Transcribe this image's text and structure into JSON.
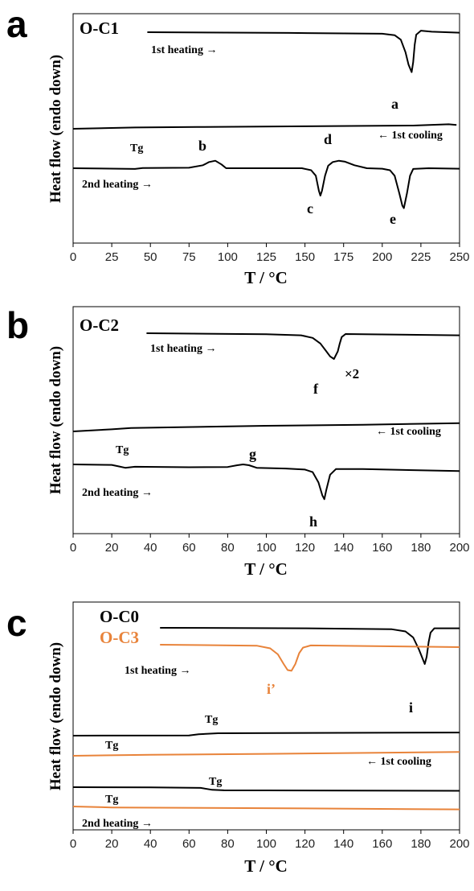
{
  "chart_data": [
    {
      "type": "line",
      "panel": "a",
      "title": "O-C1",
      "xlabel": "T / °C",
      "ylabel": "Heat flow (endo down)",
      "xlim": [
        0,
        250
      ],
      "xticks": [
        0,
        25,
        50,
        75,
        100,
        125,
        150,
        175,
        200,
        225,
        250
      ],
      "annotations": [
        {
          "text": "1st heating →"
        },
        {
          "text": "← 1st cooling"
        },
        {
          "text": "2nd heating →"
        },
        {
          "text": "Tg",
          "x": 40
        }
      ],
      "peaks": [
        {
          "label": "a",
          "x": 219
        },
        {
          "label": "b",
          "x": 92
        },
        {
          "label": "c",
          "x": 160
        },
        {
          "label": "d",
          "x": 172
        },
        {
          "label": "e",
          "x": 214
        }
      ],
      "series": [
        {
          "name": "1st heating",
          "color": "#000000",
          "points": [
            [
              48,
              0
            ],
            [
              140,
              -0.3
            ],
            [
              200,
              -0.6
            ],
            [
              208,
              -1.2
            ],
            [
              212,
              -3
            ],
            [
              215,
              -8
            ],
            [
              217,
              -13
            ],
            [
              219,
              -16
            ],
            [
              220,
              -12
            ],
            [
              221,
              -5
            ],
            [
              222,
              -1
            ],
            [
              225,
              0.6
            ],
            [
              232,
              0.2
            ],
            [
              250,
              -0.2
            ]
          ]
        },
        {
          "name": "1st cooling",
          "color": "#000000",
          "points": [
            [
              0,
              0
            ],
            [
              40,
              0.5
            ],
            [
              80,
              0.7
            ],
            [
              150,
              1
            ],
            [
              220,
              1.3
            ],
            [
              243,
              1.8
            ],
            [
              248,
              1.5
            ]
          ]
        },
        {
          "name": "2nd heating",
          "color": "#000000",
          "points": [
            [
              0,
              0
            ],
            [
              40,
              -0.3
            ],
            [
              45,
              0.1
            ],
            [
              75,
              0.2
            ],
            [
              84,
              1.2
            ],
            [
              88,
              2.5
            ],
            [
              92,
              3
            ],
            [
              96,
              1.5
            ],
            [
              99,
              0
            ],
            [
              104,
              0
            ],
            [
              148,
              0
            ],
            [
              154,
              -0.8
            ],
            [
              157,
              -3
            ],
            [
              159,
              -9
            ],
            [
              160,
              -11
            ],
            [
              161,
              -9
            ],
            [
              163,
              -3
            ],
            [
              165,
              1
            ],
            [
              168,
              2.5
            ],
            [
              172,
              3
            ],
            [
              176,
              2.6
            ],
            [
              182,
              1.2
            ],
            [
              190,
              0
            ],
            [
              200,
              -0.2
            ],
            [
              205,
              -0.8
            ],
            [
              208,
              -3
            ],
            [
              211,
              -10
            ],
            [
              213,
              -15
            ],
            [
              214,
              -16
            ],
            [
              216,
              -10
            ],
            [
              218,
              -3
            ],
            [
              220,
              -0.3
            ],
            [
              230,
              0
            ],
            [
              250,
              -0.2
            ]
          ]
        }
      ]
    },
    {
      "type": "line",
      "panel": "b",
      "title": "O-C2",
      "xlabel": "T / °C",
      "ylabel": "Heat flow (endo down)",
      "xlim": [
        0,
        200
      ],
      "xticks": [
        0,
        20,
        40,
        60,
        80,
        100,
        120,
        140,
        160,
        180,
        200
      ],
      "annotations": [
        {
          "text": "1st heating →"
        },
        {
          "text": "← 1st cooling"
        },
        {
          "text": "2nd heating →"
        },
        {
          "text": "×2",
          "x": 141
        },
        {
          "text": "Tg",
          "x": 27
        }
      ],
      "peaks": [
        {
          "label": "f",
          "x": 135
        },
        {
          "label": "g",
          "x": 88
        },
        {
          "label": "h",
          "x": 130
        }
      ],
      "series": [
        {
          "name": "1st heating",
          "color": "#000000",
          "points": [
            [
              38,
              0
            ],
            [
              100,
              -0.4
            ],
            [
              118,
              -0.8
            ],
            [
              124,
              -1.8
            ],
            [
              128,
              -4
            ],
            [
              131,
              -7
            ],
            [
              133,
              -9
            ],
            [
              135,
              -10
            ],
            [
              137,
              -7
            ],
            [
              138,
              -4
            ],
            [
              139,
              -1.5
            ],
            [
              141,
              -0.3
            ],
            [
              150,
              -0.4
            ],
            [
              200,
              -0.8
            ]
          ]
        },
        {
          "name": "1st cooling",
          "color": "#000000",
          "points": [
            [
              0,
              0
            ],
            [
              20,
              0.8
            ],
            [
              30,
              1.3
            ],
            [
              100,
              2.2
            ],
            [
              150,
              2.6
            ],
            [
              200,
              3.2
            ]
          ]
        },
        {
          "name": "2nd heating",
          "color": "#000000",
          "points": [
            [
              0,
              0
            ],
            [
              20,
              -0.2
            ],
            [
              24,
              -0.8
            ],
            [
              27,
              -1.3
            ],
            [
              32,
              -0.9
            ],
            [
              60,
              -1.1
            ],
            [
              80,
              -1
            ],
            [
              85,
              -0.3
            ],
            [
              88,
              0
            ],
            [
              91,
              -0.3
            ],
            [
              95,
              -1.3
            ],
            [
              110,
              -1.6
            ],
            [
              120,
              -2
            ],
            [
              124,
              -3
            ],
            [
              127,
              -7
            ],
            [
              129,
              -12
            ],
            [
              130,
              -13.5
            ],
            [
              131,
              -10
            ],
            [
              133,
              -4
            ],
            [
              136,
              -1.8
            ],
            [
              150,
              -1.8
            ],
            [
              200,
              -2.6
            ]
          ]
        }
      ]
    },
    {
      "type": "line",
      "panel": "c",
      "xlabel": "T / °C",
      "ylabel": "Heat flow (endo down)",
      "xlim": [
        0,
        200
      ],
      "xticks": [
        0,
        20,
        40,
        60,
        80,
        100,
        120,
        140,
        160,
        180,
        200
      ],
      "legend": [
        {
          "name": "O-C0",
          "color": "#000000"
        },
        {
          "name": "O-C3",
          "color": "#e8833a"
        }
      ],
      "annotations": [
        {
          "text": "1st heating →"
        },
        {
          "text": "← 1st cooling"
        },
        {
          "text": "2nd heating →"
        },
        {
          "text": "Tg",
          "series": "O-C0 cooling",
          "x": 72
        },
        {
          "text": "Tg",
          "series": "O-C3 cooling",
          "x": 20
        },
        {
          "text": "Tg",
          "series": "O-C0 2nd heating",
          "x": 75
        },
        {
          "text": "Tg",
          "series": "O-C3 2nd heating",
          "x": 20
        }
      ],
      "peaks": [
        {
          "label": "i",
          "x": 182
        },
        {
          "label": "i’",
          "x": 112,
          "color": "#e8833a"
        }
      ],
      "series": [
        {
          "name": "O-C0 1st heating",
          "color": "#000000",
          "points": [
            [
              45,
              0
            ],
            [
              120,
              -0.2
            ],
            [
              165,
              -0.6
            ],
            [
              172,
              -1.5
            ],
            [
              176,
              -4
            ],
            [
              179,
              -9
            ],
            [
              181,
              -13
            ],
            [
              182,
              -15
            ],
            [
              183,
              -12
            ],
            [
              184,
              -6
            ],
            [
              185,
              -2
            ],
            [
              187,
              -0.2
            ],
            [
              200,
              -0.2
            ]
          ]
        },
        {
          "name": "O-C3 1st heating",
          "color": "#e8833a",
          "points": [
            [
              45,
              0
            ],
            [
              95,
              -0.4
            ],
            [
              102,
              -1.5
            ],
            [
              106,
              -4
            ],
            [
              109,
              -8
            ],
            [
              111,
              -10.5
            ],
            [
              113,
              -10.8
            ],
            [
              115,
              -8
            ],
            [
              117,
              -3.5
            ],
            [
              119,
              -1.2
            ],
            [
              123,
              -0.3
            ],
            [
              200,
              -1
            ]
          ]
        },
        {
          "name": "O-C0 1st cooling",
          "color": "#000000",
          "points": [
            [
              0,
              0
            ],
            [
              60,
              0.1
            ],
            [
              65,
              0.6
            ],
            [
              75,
              1
            ],
            [
              200,
              1.3
            ]
          ]
        },
        {
          "name": "O-C3 1st cooling",
          "color": "#e8833a",
          "points": [
            [
              0,
              0
            ],
            [
              40,
              0.4
            ],
            [
              100,
              0.8
            ],
            [
              200,
              1.6
            ]
          ]
        },
        {
          "name": "O-C0 2nd heating",
          "color": "#000000",
          "points": [
            [
              0,
              0
            ],
            [
              40,
              -0.1
            ],
            [
              66,
              -0.3
            ],
            [
              72,
              -1.1
            ],
            [
              78,
              -1.3
            ],
            [
              200,
              -1.5
            ]
          ]
        },
        {
          "name": "O-C3 2nd heating",
          "color": "#e8833a",
          "points": [
            [
              0,
              0
            ],
            [
              20,
              -0.4
            ],
            [
              100,
              -0.7
            ],
            [
              200,
              -1.2
            ]
          ]
        }
      ]
    }
  ]
}
